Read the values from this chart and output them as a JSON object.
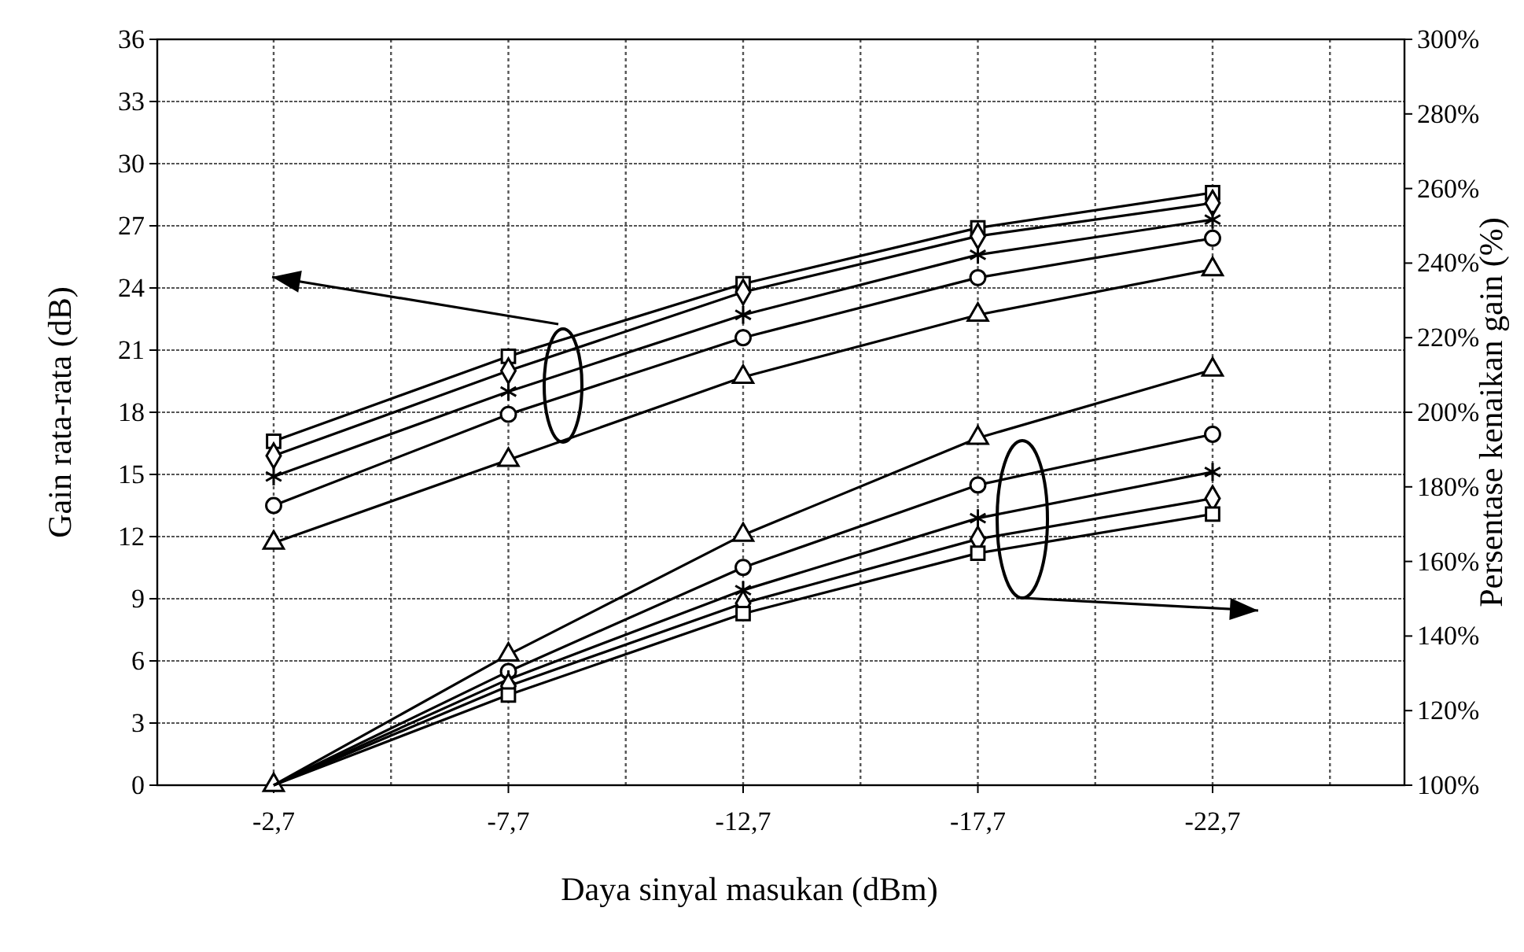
{
  "chart_data": {
    "type": "line",
    "xlabel": "Daya sinyal masukan (dBm)",
    "ylabel": "Gain rata-rata (dB)",
    "y2label": "Persentase kenaikan gain (%)",
    "categories": [
      "-2,7",
      "-7,7",
      "-12,7",
      "-17,7",
      "-22,7"
    ],
    "ylim": [
      0,
      36
    ],
    "yticks": [
      0,
      3,
      6,
      9,
      12,
      15,
      18,
      21,
      24,
      27,
      30,
      33,
      36
    ],
    "y2lim": [
      100,
      300
    ],
    "y2ticks": [
      {
        "value": 100,
        "label": "100%"
      },
      {
        "value": 120,
        "label": "120%"
      },
      {
        "value": 140,
        "label": "140%"
      },
      {
        "value": 160,
        "label": "160%"
      },
      {
        "value": 180,
        "label": "180%"
      },
      {
        "value": 200,
        "label": "200%"
      },
      {
        "value": 220,
        "label": "220%"
      },
      {
        "value": 240,
        "label": "240%"
      },
      {
        "value": 260,
        "label": "260%"
      },
      {
        "value": 280,
        "label": "280%"
      },
      {
        "value": 300,
        "label": "300%"
      }
    ],
    "grid": true,
    "line_style": "solid",
    "series": [
      {
        "color": "#000000",
        "marker": "square",
        "values": [
          16.6,
          20.7,
          24.2,
          26.9,
          28.6
        ]
      },
      {
        "color": "#000000",
        "marker": "diamond",
        "values": [
          15.9,
          20.0,
          23.8,
          26.5,
          28.1
        ]
      },
      {
        "color": "#000000",
        "marker": "cross",
        "values": [
          14.9,
          19.0,
          22.7,
          25.6,
          27.3
        ]
      },
      {
        "color": "#000000",
        "marker": "circle",
        "values": [
          13.5,
          17.9,
          21.6,
          24.5,
          26.4
        ]
      },
      {
        "color": "#000000",
        "marker": "triangle",
        "values": [
          11.7,
          15.7,
          19.7,
          22.7,
          24.9
        ]
      },
      {
        "color": "#000000",
        "marker": "triangle",
        "axis": "y2",
        "values": [
          100,
          135.0,
          167.1,
          193.1,
          211.4
        ]
      },
      {
        "color": "#000000",
        "marker": "circle",
        "axis": "y2",
        "values": [
          100,
          130.5,
          158.4,
          180.5,
          194.1
        ]
      },
      {
        "color": "#000000",
        "marker": "cross",
        "axis": "y2",
        "values": [
          100,
          128.4,
          152.3,
          171.6,
          184.0
        ]
      },
      {
        "color": "#000000",
        "marker": "diamond",
        "axis": "y2",
        "values": [
          100,
          126.6,
          148.8,
          166.0,
          176.9
        ]
      },
      {
        "color": "#000000",
        "marker": "square",
        "axis": "y2",
        "values": [
          100,
          124.2,
          146.0,
          162.2,
          172.7
        ]
      }
    ]
  }
}
